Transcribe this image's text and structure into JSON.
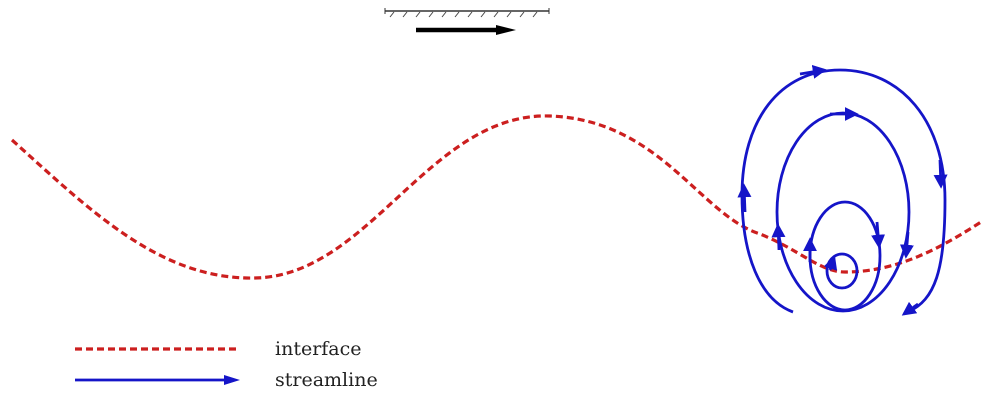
{
  "colors": {
    "interface": "#cc1f1f",
    "streamline": "#1515c8",
    "wall_arrow": "#000000",
    "background": "#ffffff"
  },
  "legend": {
    "interface_label": "interface",
    "streamline_label": "streamline"
  },
  "icons": {
    "moving_wall": "hatched-wall-icon",
    "wall_direction": "arrow-right-icon",
    "streamline_arrow": "arrowhead-icon"
  }
}
